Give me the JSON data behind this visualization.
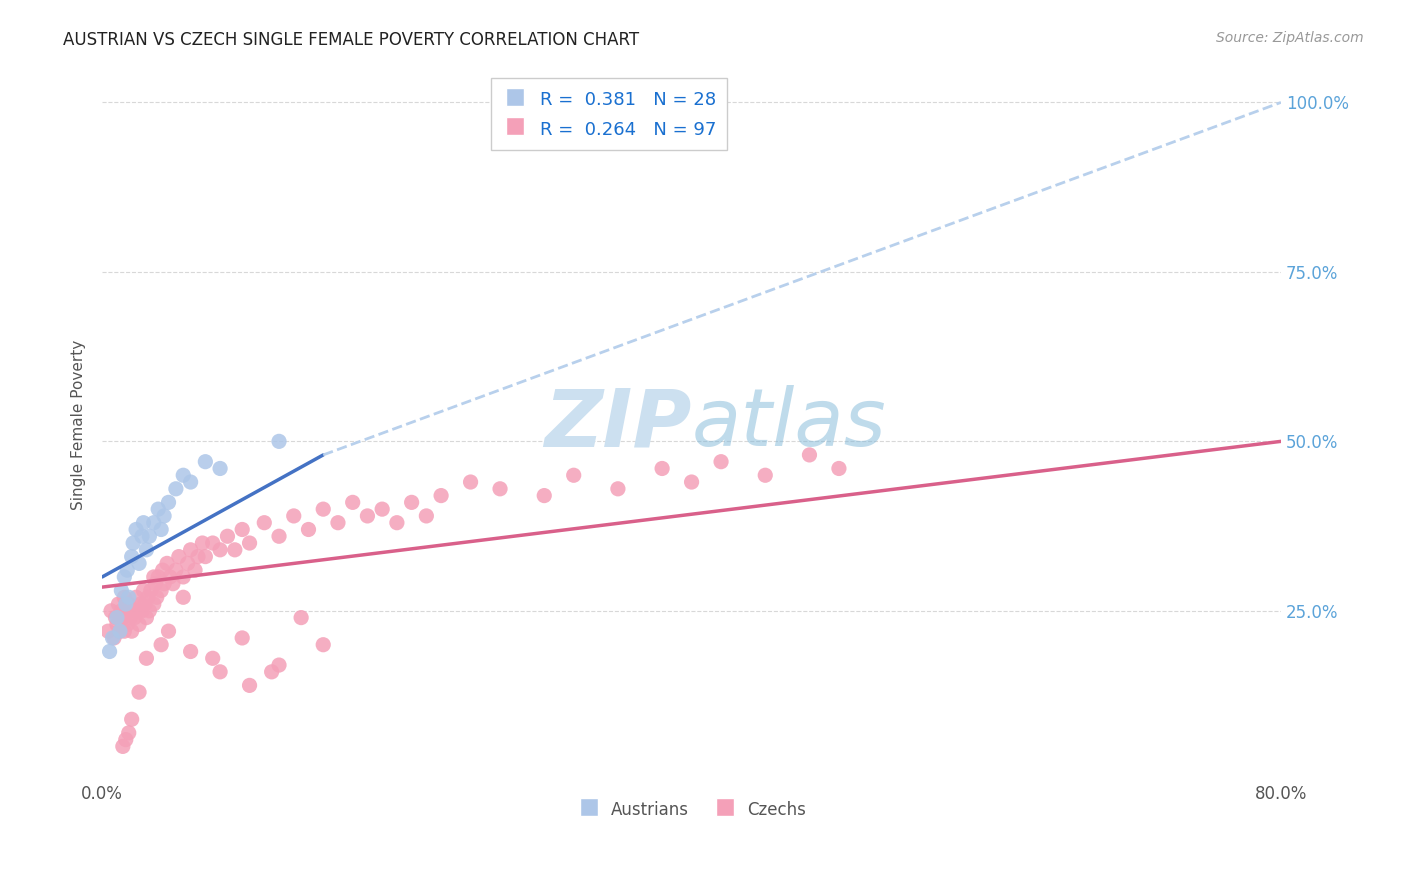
{
  "title": "AUSTRIAN VS CZECH SINGLE FEMALE POVERTY CORRELATION CHART",
  "source": "Source: ZipAtlas.com",
  "ylabel": "Single Female Poverty",
  "xlim": [
    0.0,
    0.8
  ],
  "ylim": [
    0.0,
    1.05
  ],
  "x_tick_positions": [
    0.0,
    0.1,
    0.2,
    0.3,
    0.4,
    0.5,
    0.6,
    0.7,
    0.8
  ],
  "x_tick_labels": [
    "0.0%",
    "",
    "",
    "",
    "",
    "",
    "",
    "",
    "80.0%"
  ],
  "y_tick_positions": [
    0.25,
    0.5,
    0.75,
    1.0
  ],
  "y_tick_labels_right": [
    "25.0%",
    "50.0%",
    "75.0%",
    "100.0%"
  ],
  "austrians_R": 0.381,
  "austrians_N": 28,
  "czechs_R": 0.264,
  "czechs_N": 97,
  "austrians_color": "#adc6e8",
  "czechs_color": "#f4a0b8",
  "austrians_line_color": "#4472c4",
  "czechs_line_color": "#d9608a",
  "trendline_ext_color": "#b8d0ec",
  "background_color": "#ffffff",
  "grid_color": "#d8d8d8",
  "title_color": "#222222",
  "right_axis_label_color": "#5ba3d9",
  "watermark_color": "#cce0f0",
  "legend_text_color": "#1a70d0",
  "axis_label_color": "#555555",
  "bottom_legend_text_color": "#555555",
  "austrians_x": [
    0.005,
    0.007,
    0.01,
    0.012,
    0.013,
    0.015,
    0.016,
    0.017,
    0.018,
    0.02,
    0.021,
    0.023,
    0.025,
    0.027,
    0.028,
    0.03,
    0.032,
    0.035,
    0.038,
    0.04,
    0.042,
    0.045,
    0.05,
    0.055,
    0.06,
    0.07,
    0.08,
    0.12
  ],
  "austrians_y": [
    0.19,
    0.21,
    0.24,
    0.22,
    0.28,
    0.3,
    0.26,
    0.31,
    0.27,
    0.33,
    0.35,
    0.37,
    0.32,
    0.36,
    0.38,
    0.34,
    0.36,
    0.38,
    0.4,
    0.37,
    0.39,
    0.41,
    0.43,
    0.45,
    0.44,
    0.47,
    0.46,
    0.5
  ],
  "czechs_x": [
    0.004,
    0.006,
    0.008,
    0.009,
    0.01,
    0.011,
    0.012,
    0.013,
    0.014,
    0.015,
    0.015,
    0.016,
    0.017,
    0.018,
    0.019,
    0.02,
    0.021,
    0.022,
    0.023,
    0.024,
    0.025,
    0.026,
    0.027,
    0.028,
    0.029,
    0.03,
    0.031,
    0.032,
    0.033,
    0.035,
    0.036,
    0.037,
    0.038,
    0.04,
    0.041,
    0.042,
    0.044,
    0.046,
    0.048,
    0.05,
    0.052,
    0.055,
    0.058,
    0.06,
    0.063,
    0.065,
    0.068,
    0.07,
    0.075,
    0.08,
    0.085,
    0.09,
    0.095,
    0.1,
    0.11,
    0.12,
    0.13,
    0.14,
    0.15,
    0.16,
    0.17,
    0.18,
    0.19,
    0.2,
    0.21,
    0.22,
    0.23,
    0.25,
    0.27,
    0.3,
    0.32,
    0.35,
    0.38,
    0.4,
    0.42,
    0.45,
    0.48,
    0.5,
    0.15,
    0.12,
    0.1,
    0.08,
    0.06,
    0.04,
    0.03,
    0.025,
    0.02,
    0.018,
    0.016,
    0.014,
    0.035,
    0.045,
    0.055,
    0.075,
    0.095,
    0.115,
    0.135
  ],
  "czechs_y": [
    0.22,
    0.25,
    0.21,
    0.24,
    0.23,
    0.26,
    0.22,
    0.25,
    0.24,
    0.27,
    0.22,
    0.25,
    0.23,
    0.26,
    0.24,
    0.22,
    0.25,
    0.24,
    0.27,
    0.25,
    0.23,
    0.26,
    0.25,
    0.28,
    0.26,
    0.24,
    0.27,
    0.25,
    0.28,
    0.26,
    0.29,
    0.27,
    0.3,
    0.28,
    0.31,
    0.29,
    0.32,
    0.3,
    0.29,
    0.31,
    0.33,
    0.3,
    0.32,
    0.34,
    0.31,
    0.33,
    0.35,
    0.33,
    0.35,
    0.34,
    0.36,
    0.34,
    0.37,
    0.35,
    0.38,
    0.36,
    0.39,
    0.37,
    0.4,
    0.38,
    0.41,
    0.39,
    0.4,
    0.38,
    0.41,
    0.39,
    0.42,
    0.44,
    0.43,
    0.42,
    0.45,
    0.43,
    0.46,
    0.44,
    0.47,
    0.45,
    0.48,
    0.46,
    0.2,
    0.17,
    0.14,
    0.16,
    0.19,
    0.2,
    0.18,
    0.13,
    0.09,
    0.07,
    0.06,
    0.05,
    0.3,
    0.22,
    0.27,
    0.18,
    0.21,
    0.16,
    0.24
  ],
  "aus_trendline_x0": 0.0,
  "aus_trendline_x1": 0.15,
  "aus_trendline_y0": 0.3,
  "aus_trendline_y1": 0.48,
  "aus_trendline_ext_x0": 0.15,
  "aus_trendline_ext_x1": 0.8,
  "aus_trendline_ext_y0": 0.48,
  "aus_trendline_ext_y1": 1.0,
  "cze_trendline_x0": 0.0,
  "cze_trendline_x1": 0.8,
  "cze_trendline_y0": 0.285,
  "cze_trendline_y1": 0.5
}
